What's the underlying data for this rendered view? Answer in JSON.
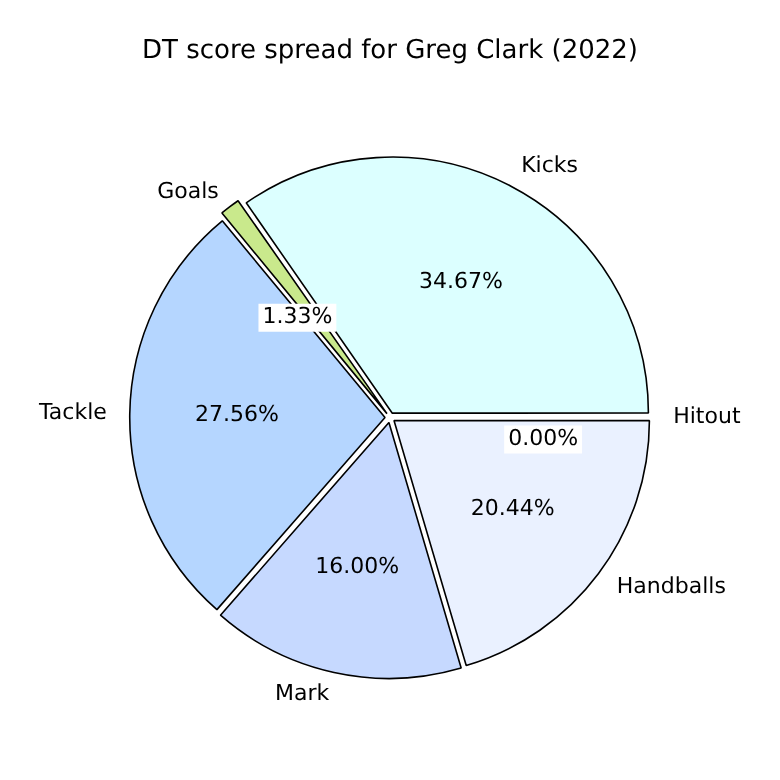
{
  "chart_data": {
    "type": "pie",
    "title": "DT score spread for Greg Clark (2022)",
    "categories": [
      "Handballs",
      "Mark",
      "Tackle",
      "Goals",
      "Kicks",
      "Hitout"
    ],
    "values": [
      20.44,
      16.0,
      27.56,
      1.33,
      34.67,
      0.0
    ],
    "value_labels": [
      "20.44%",
      "16.00%",
      "27.56%",
      "1.33%",
      "34.67%",
      "0.00%"
    ],
    "colors": [
      "#eaf1ff",
      "#c6d9ff",
      "#b5d6ff",
      "#c9e98c",
      "#dcffff",
      "#f0f8ff"
    ],
    "legend": false
  }
}
